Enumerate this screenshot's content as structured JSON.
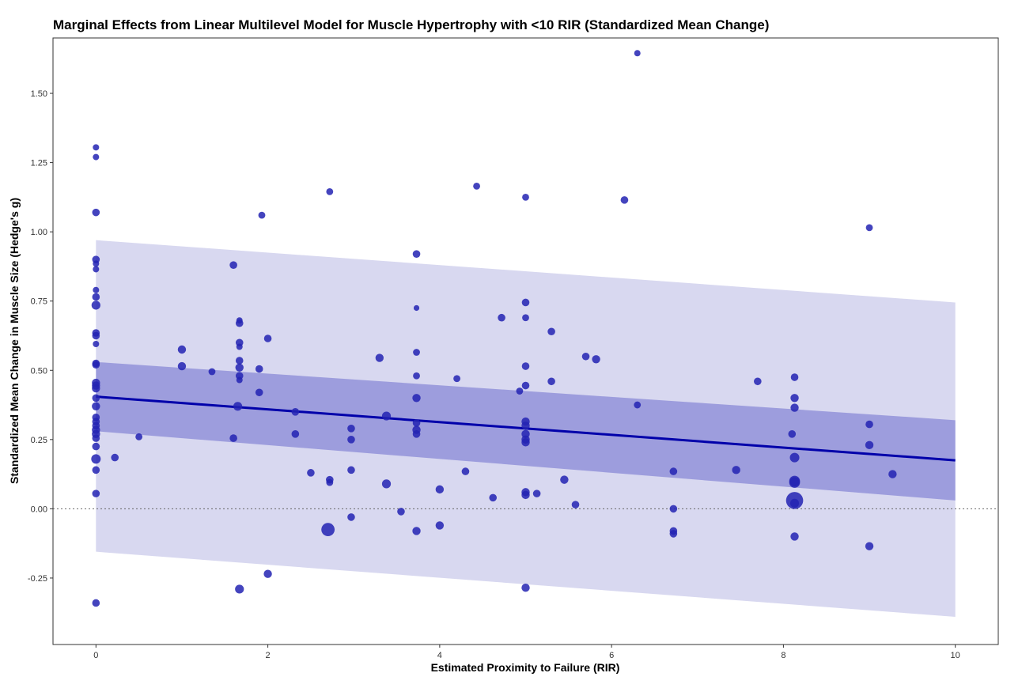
{
  "chart_data": {
    "type": "scatter",
    "title": "Marginal Effects from Linear Multilevel Model for Muscle Hypertrophy with <10 RIR (Standardized Mean Change)",
    "xlabel": "Estimated Proximity to Failure (RIR)",
    "ylabel": "Standardized Mean Change in Muscle Size (Hedge's g)",
    "xlim": [
      -0.5,
      10.5
    ],
    "ylim": [
      -0.49,
      1.7
    ],
    "x_ticks": [
      0,
      2,
      4,
      6,
      8,
      10
    ],
    "x_tick_labels": [
      "0",
      "2",
      "4",
      "6",
      "8",
      "10"
    ],
    "y_ticks": [
      -0.25,
      0,
      0.25,
      0.5,
      0.75,
      1.0,
      1.25,
      1.5
    ],
    "y_tick_labels": [
      "-0.25",
      "0.00",
      "0.25",
      "0.50",
      "0.75",
      "1.00",
      "1.25",
      "1.50"
    ],
    "reference_line": {
      "y": 0,
      "style": "dotted"
    },
    "grid": false,
    "fit_line": {
      "x": [
        0,
        10
      ],
      "y": [
        0.405,
        0.175
      ],
      "color": "#0000aa"
    },
    "confidence_band": {
      "x": [
        0,
        10
      ],
      "lower": [
        0.28,
        0.03
      ],
      "upper": [
        0.53,
        0.32
      ],
      "color": "#9d9ddd"
    },
    "prediction_band": {
      "x": [
        0,
        10
      ],
      "lower": [
        -0.155,
        -0.39
      ],
      "upper": [
        0.97,
        0.745
      ],
      "color": "#d8d8f0"
    },
    "point_color": "#2323b3",
    "points": [
      {
        "x": 0,
        "y": 1.305,
        "s": 1
      },
      {
        "x": 0,
        "y": 1.27,
        "s": 1
      },
      {
        "x": 0,
        "y": 1.07,
        "s": 1.2
      },
      {
        "x": 0,
        "y": 0.9,
        "s": 1.2
      },
      {
        "x": 0,
        "y": 0.885,
        "s": 1
      },
      {
        "x": 0,
        "y": 0.865,
        "s": 1
      },
      {
        "x": 0,
        "y": 0.79,
        "s": 1
      },
      {
        "x": 0,
        "y": 0.765,
        "s": 1.2
      },
      {
        "x": 0,
        "y": 0.735,
        "s": 1.4
      },
      {
        "x": 0,
        "y": 0.635,
        "s": 1.2
      },
      {
        "x": 0,
        "y": 0.625,
        "s": 1.2
      },
      {
        "x": 0,
        "y": 0.595,
        "s": 1
      },
      {
        "x": 0,
        "y": 0.525,
        "s": 1.2
      },
      {
        "x": 0,
        "y": 0.52,
        "s": 1.2
      },
      {
        "x": 0,
        "y": 0.455,
        "s": 1.3
      },
      {
        "x": 0,
        "y": 0.445,
        "s": 1.3
      },
      {
        "x": 0,
        "y": 0.435,
        "s": 1.3
      },
      {
        "x": 0,
        "y": 0.4,
        "s": 1.2
      },
      {
        "x": 0,
        "y": 0.37,
        "s": 1.3
      },
      {
        "x": 0,
        "y": 0.33,
        "s": 1.2
      },
      {
        "x": 0,
        "y": 0.315,
        "s": 1.2
      },
      {
        "x": 0,
        "y": 0.3,
        "s": 1.2
      },
      {
        "x": 0,
        "y": 0.285,
        "s": 1.3
      },
      {
        "x": 0,
        "y": 0.27,
        "s": 1.3
      },
      {
        "x": 0,
        "y": 0.255,
        "s": 1.2
      },
      {
        "x": 0,
        "y": 0.225,
        "s": 1.2
      },
      {
        "x": 0,
        "y": 0.18,
        "s": 1.5
      },
      {
        "x": 0,
        "y": 0.14,
        "s": 1.2
      },
      {
        "x": 0,
        "y": 0.055,
        "s": 1.2
      },
      {
        "x": 0,
        "y": -0.34,
        "s": 1.2
      },
      {
        "x": 0.22,
        "y": 0.185,
        "s": 1.2
      },
      {
        "x": 0.5,
        "y": 0.26,
        "s": 1.1
      },
      {
        "x": 1,
        "y": 0.575,
        "s": 1.3
      },
      {
        "x": 1,
        "y": 0.515,
        "s": 1.3
      },
      {
        "x": 1.35,
        "y": 0.495,
        "s": 1.1
      },
      {
        "x": 1.6,
        "y": 0.88,
        "s": 1.2
      },
      {
        "x": 1.6,
        "y": 0.255,
        "s": 1.2
      },
      {
        "x": 1.65,
        "y": 0.37,
        "s": 1.4
      },
      {
        "x": 1.67,
        "y": 0.68,
        "s": 1
      },
      {
        "x": 1.67,
        "y": 0.67,
        "s": 1.2
      },
      {
        "x": 1.67,
        "y": 0.6,
        "s": 1.2
      },
      {
        "x": 1.67,
        "y": 0.585,
        "s": 1
      },
      {
        "x": 1.67,
        "y": 0.535,
        "s": 1.2
      },
      {
        "x": 1.67,
        "y": 0.51,
        "s": 1.3
      },
      {
        "x": 1.67,
        "y": 0.48,
        "s": 1.2
      },
      {
        "x": 1.67,
        "y": 0.465,
        "s": 1
      },
      {
        "x": 1.67,
        "y": -0.29,
        "s": 1.4
      },
      {
        "x": 1.9,
        "y": 0.505,
        "s": 1.2
      },
      {
        "x": 1.9,
        "y": 0.42,
        "s": 1.2
      },
      {
        "x": 1.93,
        "y": 1.06,
        "s": 1.1
      },
      {
        "x": 2,
        "y": 0.615,
        "s": 1.2
      },
      {
        "x": 2,
        "y": -0.235,
        "s": 1.3
      },
      {
        "x": 2.32,
        "y": 0.35,
        "s": 1.2
      },
      {
        "x": 2.32,
        "y": 0.27,
        "s": 1.2
      },
      {
        "x": 2.5,
        "y": 0.13,
        "s": 1.2
      },
      {
        "x": 2.7,
        "y": -0.075,
        "s": 2.1
      },
      {
        "x": 2.72,
        "y": 0.105,
        "s": 1.2
      },
      {
        "x": 2.72,
        "y": 0.095,
        "s": 1.1
      },
      {
        "x": 2.72,
        "y": 1.145,
        "s": 1.1
      },
      {
        "x": 2.97,
        "y": 0.29,
        "s": 1.2
      },
      {
        "x": 2.97,
        "y": 0.25,
        "s": 1.2
      },
      {
        "x": 2.97,
        "y": 0.14,
        "s": 1.2
      },
      {
        "x": 2.97,
        "y": -0.03,
        "s": 1.2
      },
      {
        "x": 3.3,
        "y": 0.545,
        "s": 1.3
      },
      {
        "x": 3.38,
        "y": 0.335,
        "s": 1.4
      },
      {
        "x": 3.38,
        "y": 0.09,
        "s": 1.4
      },
      {
        "x": 3.55,
        "y": -0.01,
        "s": 1.2
      },
      {
        "x": 3.73,
        "y": 0.92,
        "s": 1.2
      },
      {
        "x": 3.73,
        "y": 0.725,
        "s": 0.9
      },
      {
        "x": 3.73,
        "y": 0.565,
        "s": 1.1
      },
      {
        "x": 3.73,
        "y": 0.48,
        "s": 1.1
      },
      {
        "x": 3.73,
        "y": 0.4,
        "s": 1.3
      },
      {
        "x": 3.73,
        "y": 0.31,
        "s": 1.2
      },
      {
        "x": 3.73,
        "y": 0.285,
        "s": 1.3
      },
      {
        "x": 3.73,
        "y": 0.27,
        "s": 1.2
      },
      {
        "x": 3.73,
        "y": -0.08,
        "s": 1.3
      },
      {
        "x": 4,
        "y": 0.07,
        "s": 1.3
      },
      {
        "x": 4,
        "y": -0.06,
        "s": 1.3
      },
      {
        "x": 4.2,
        "y": 0.47,
        "s": 1.1
      },
      {
        "x": 4.3,
        "y": 0.135,
        "s": 1.2
      },
      {
        "x": 4.43,
        "y": 1.165,
        "s": 1.1
      },
      {
        "x": 4.62,
        "y": 0.04,
        "s": 1.2
      },
      {
        "x": 4.72,
        "y": 0.69,
        "s": 1.2
      },
      {
        "x": 4.93,
        "y": 0.425,
        "s": 1.1
      },
      {
        "x": 5,
        "y": 1.125,
        "s": 1.1
      },
      {
        "x": 5,
        "y": 0.745,
        "s": 1.2
      },
      {
        "x": 5,
        "y": 0.69,
        "s": 1.1
      },
      {
        "x": 5,
        "y": 0.515,
        "s": 1.2
      },
      {
        "x": 5,
        "y": 0.445,
        "s": 1.2
      },
      {
        "x": 5,
        "y": 0.315,
        "s": 1.3
      },
      {
        "x": 5,
        "y": 0.3,
        "s": 1.3
      },
      {
        "x": 5,
        "y": 0.27,
        "s": 1.3
      },
      {
        "x": 5,
        "y": 0.25,
        "s": 1.3
      },
      {
        "x": 5,
        "y": 0.24,
        "s": 1.3
      },
      {
        "x": 5,
        "y": 0.06,
        "s": 1.3
      },
      {
        "x": 5,
        "y": 0.05,
        "s": 1.3
      },
      {
        "x": 5,
        "y": -0.285,
        "s": 1.3
      },
      {
        "x": 5.13,
        "y": 0.055,
        "s": 1.2
      },
      {
        "x": 5.3,
        "y": 0.64,
        "s": 1.2
      },
      {
        "x": 5.3,
        "y": 0.46,
        "s": 1.2
      },
      {
        "x": 5.45,
        "y": 0.105,
        "s": 1.3
      },
      {
        "x": 5.58,
        "y": 0.015,
        "s": 1.2
      },
      {
        "x": 5.7,
        "y": 0.55,
        "s": 1.2
      },
      {
        "x": 5.82,
        "y": 0.54,
        "s": 1.3
      },
      {
        "x": 6.15,
        "y": 1.115,
        "s": 1.2
      },
      {
        "x": 6.3,
        "y": 1.645,
        "s": 1
      },
      {
        "x": 6.3,
        "y": 0.375,
        "s": 1.1
      },
      {
        "x": 6.72,
        "y": 0.135,
        "s": 1.2
      },
      {
        "x": 6.72,
        "y": 0,
        "s": 1.2
      },
      {
        "x": 6.72,
        "y": -0.08,
        "s": 1.2
      },
      {
        "x": 6.72,
        "y": -0.09,
        "s": 1.2
      },
      {
        "x": 7.45,
        "y": 0.14,
        "s": 1.3
      },
      {
        "x": 7.7,
        "y": 0.46,
        "s": 1.2
      },
      {
        "x": 8.1,
        "y": 0.27,
        "s": 1.2
      },
      {
        "x": 8.13,
        "y": 0.475,
        "s": 1.2
      },
      {
        "x": 8.13,
        "y": 0.4,
        "s": 1.3
      },
      {
        "x": 8.13,
        "y": 0.365,
        "s": 1.3
      },
      {
        "x": 8.13,
        "y": 0.185,
        "s": 1.5
      },
      {
        "x": 8.13,
        "y": 0.1,
        "s": 1.7
      },
      {
        "x": 8.13,
        "y": 0.095,
        "s": 1.7
      },
      {
        "x": 8.13,
        "y": 0.03,
        "s": 2.7
      },
      {
        "x": 8.13,
        "y": 0.02,
        "s": 1.4
      },
      {
        "x": 8.13,
        "y": -0.1,
        "s": 1.3
      },
      {
        "x": 9,
        "y": 1.015,
        "s": 1.1
      },
      {
        "x": 9,
        "y": 0.305,
        "s": 1.2
      },
      {
        "x": 9,
        "y": 0.23,
        "s": 1.3
      },
      {
        "x": 9,
        "y": -0.135,
        "s": 1.3
      },
      {
        "x": 9.27,
        "y": 0.125,
        "s": 1.3
      }
    ]
  },
  "caption": ""
}
